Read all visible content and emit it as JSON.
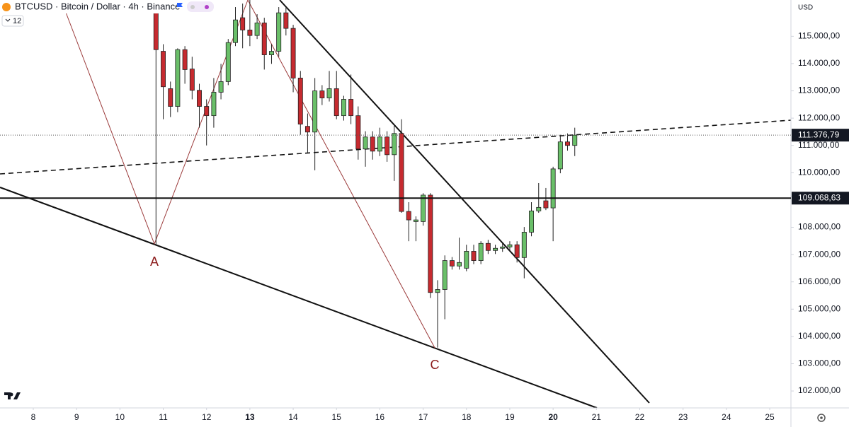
{
  "chart_data": {
    "type": "candlestick",
    "title": "BTCUSD · Bitcoin / Dollar · 4h · Binance",
    "badge": 12,
    "currency": "USD",
    "up_color": "#6abf69",
    "down_color": "#c62a2f",
    "grid": false,
    "x": [
      10.833,
      11,
      11.167,
      11.333,
      11.5,
      11.667,
      11.833,
      12,
      12.167,
      12.333,
      12.5,
      12.667,
      12.833,
      13,
      13.167,
      13.333,
      13.5,
      13.667,
      13.833,
      14,
      14.167,
      14.333,
      14.5,
      14.667,
      14.833,
      15,
      15.167,
      15.333,
      15.5,
      15.667,
      15.833,
      16,
      16.167,
      16.333,
      16.5,
      16.667,
      16.833,
      17,
      17.167,
      17.333,
      17.5,
      17.667,
      17.833,
      18,
      18.167,
      18.333,
      18.5,
      18.667,
      18.833,
      19,
      19.167,
      19.333,
      19.5,
      19.667,
      19.833,
      20,
      20.167,
      20.333,
      20.5
    ],
    "open": [
      115860,
      114450,
      113080,
      112430,
      114510,
      113800,
      113020,
      112430,
      112090,
      112950,
      113340,
      114770,
      115680,
      115230,
      115030,
      115490,
      114320,
      114450,
      115860,
      115290,
      113470,
      111700,
      111490,
      113000,
      112740,
      113080,
      112090,
      112690,
      112090,
      110870,
      111310,
      110790,
      111310,
      110660,
      111440,
      108580,
      108210,
      108210,
      109180,
      105610,
      105720,
      106780,
      106580,
      106500,
      107120,
      106780,
      107410,
      107150,
      107230,
      107280,
      107360,
      106890,
      107820,
      108600,
      108970,
      108710,
      110140,
      111130,
      111000
    ],
    "high": [
      115940,
      114710,
      113340,
      114560,
      114640,
      114250,
      113260,
      112690,
      113470,
      113990,
      114900,
      116070,
      116200,
      116330,
      115810,
      115680,
      114710,
      116070,
      116070,
      115420,
      113730,
      112170,
      113470,
      113210,
      113730,
      113730,
      112820,
      113600,
      112430,
      111520,
      111520,
      111650,
      111520,
      111780,
      111960,
      108920,
      108400,
      109250,
      109250,
      106060,
      106970,
      106910,
      107620,
      107360,
      107360,
      107490,
      107540,
      107360,
      107410,
      107490,
      107490,
      108010,
      108920,
      109620,
      109440,
      110220,
      111390,
      111440,
      111650
    ],
    "low": [
      107360,
      111960,
      112040,
      112220,
      113260,
      112690,
      111650,
      111000,
      111650,
      112690,
      113210,
      114640,
      114560,
      114640,
      114900,
      113780,
      113990,
      114250,
      115030,
      112950,
      111390,
      110740,
      110090,
      112480,
      112610,
      111960,
      111910,
      111780,
      110480,
      110220,
      110480,
      110610,
      110400,
      109700,
      108530,
      107490,
      107490,
      108060,
      105410,
      103590,
      104630,
      106450,
      106450,
      106390,
      106650,
      106650,
      107020,
      107020,
      107100,
      107150,
      106710,
      106130,
      107670,
      108530,
      108630,
      107490,
      109980,
      110810,
      110610
    ],
    "close": [
      114510,
      113150,
      112430,
      114510,
      113780,
      113020,
      112430,
      112090,
      112950,
      113340,
      114770,
      115600,
      115230,
      115030,
      115490,
      114320,
      114450,
      115860,
      115290,
      113470,
      111780,
      111490,
      113000,
      112740,
      113080,
      112090,
      112690,
      112090,
      110870,
      111310,
      110790,
      111310,
      110660,
      111440,
      108580,
      108270,
      108270,
      109180,
      105610,
      105720,
      106780,
      106580,
      106710,
      107120,
      106780,
      107410,
      107150,
      107230,
      107280,
      107360,
      106890,
      107820,
      108600,
      108730,
      108710,
      110140,
      111130,
      111000,
      111376.79
    ],
    "xlim": [
      7.232,
      25.49
    ],
    "xticks": [
      8,
      9,
      10,
      11,
      12,
      13,
      14,
      15,
      16,
      17,
      18,
      19,
      20,
      21,
      22,
      23,
      24,
      25
    ],
    "xticks_bold": [
      13,
      20
    ],
    "ylim": [
      101380,
      116330
    ],
    "yticks": [
      {
        "value": 102000,
        "label": "102.000,00"
      },
      {
        "value": 103000,
        "label": "103.000,00"
      },
      {
        "value": 104000,
        "label": "104.000,00"
      },
      {
        "value": 105000,
        "label": "105.000,00"
      },
      {
        "value": 106000,
        "label": "106.000,00"
      },
      {
        "value": 107000,
        "label": "107.000,00"
      },
      {
        "value": 108000,
        "label": "108.000,00"
      },
      {
        "value": 110000,
        "label": "110.000,00"
      },
      {
        "value": 111000,
        "label": "111.000,00"
      },
      {
        "value": 112000,
        "label": "112.000,00"
      },
      {
        "value": 113000,
        "label": "113.000,00"
      },
      {
        "value": 114000,
        "label": "114.000,00"
      },
      {
        "value": 115000,
        "label": "115.000,00"
      }
    ],
    "price_lines": [
      {
        "value": 109068.63,
        "label": "109.068,63",
        "style": "solid"
      },
      {
        "value": 111376.79,
        "label": "111.376,79",
        "style": "dotted"
      }
    ],
    "annotations": [
      "A",
      "C"
    ]
  }
}
